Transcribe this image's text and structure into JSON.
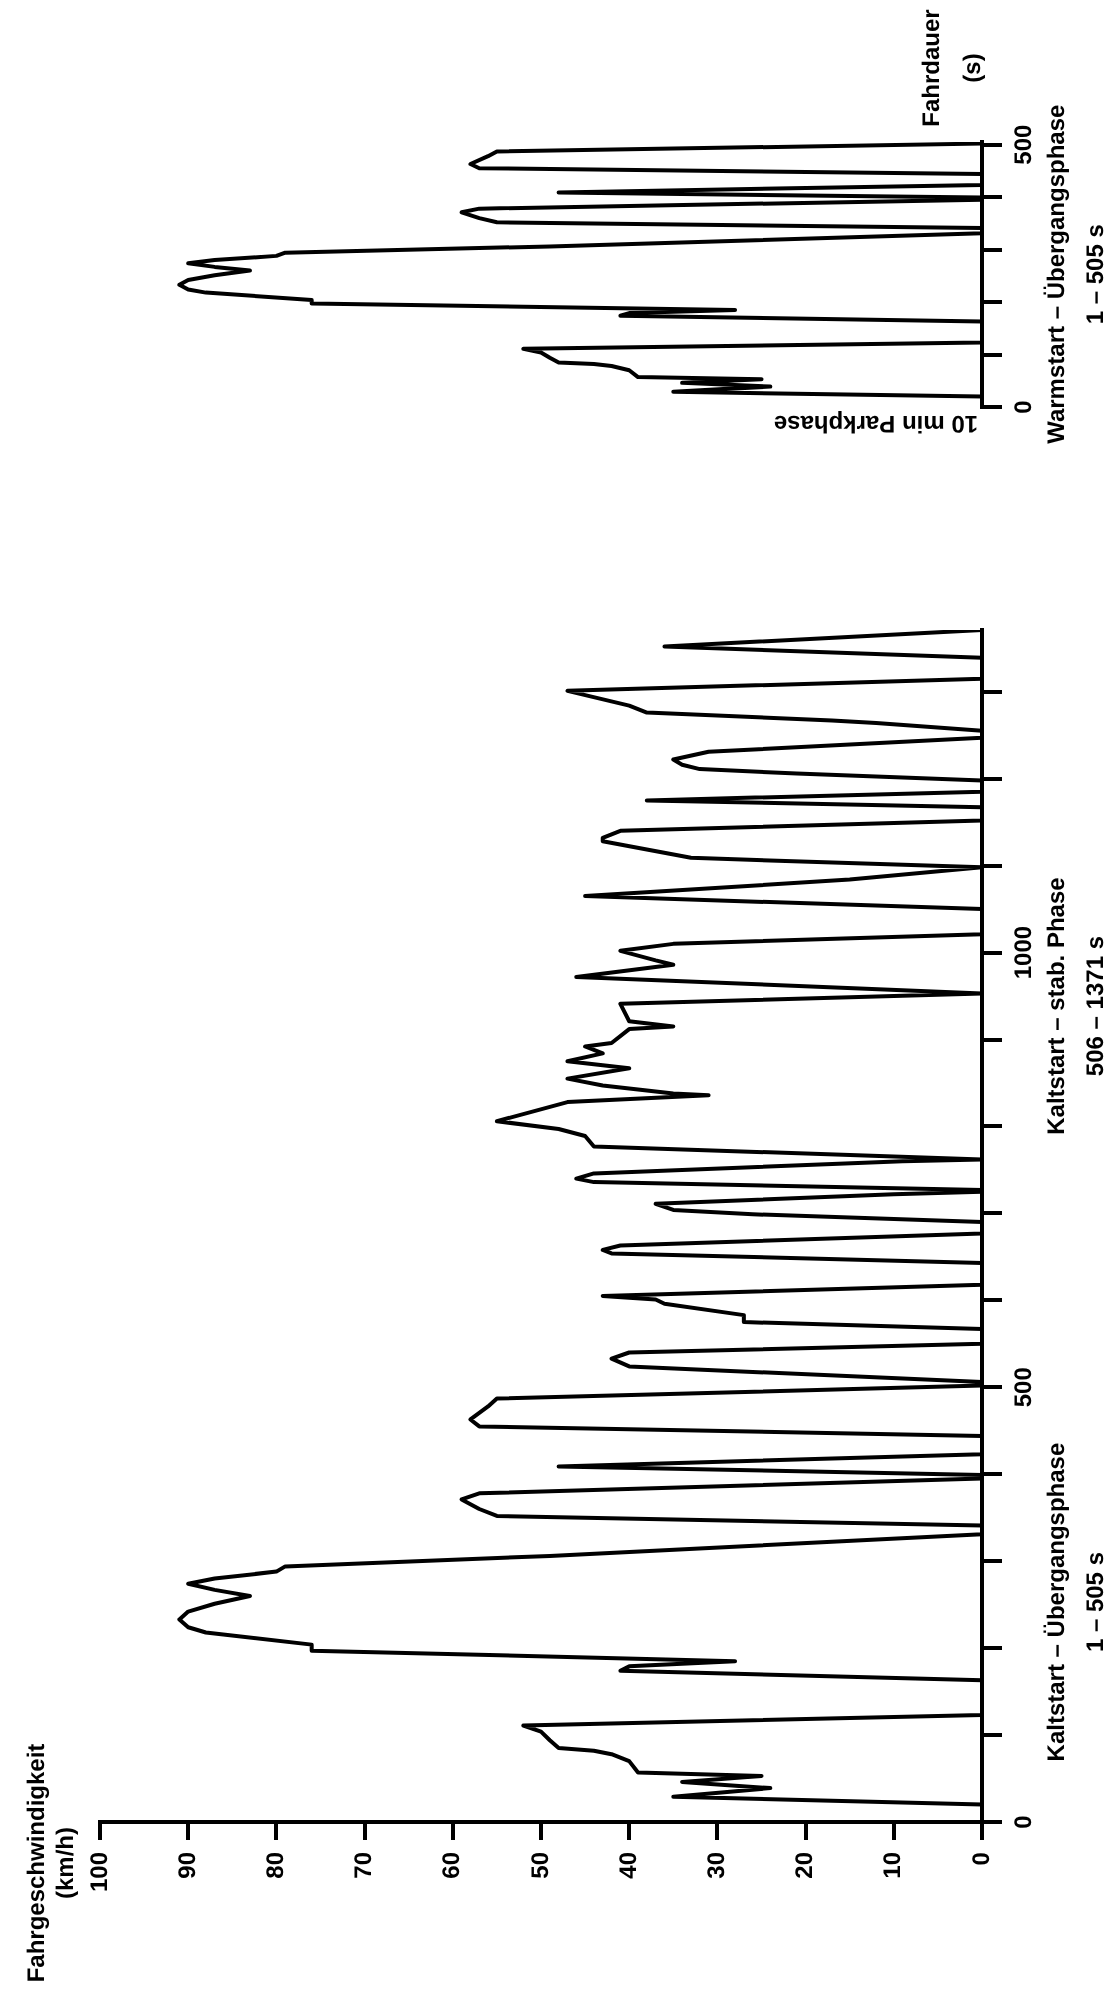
{
  "chart_data": [
    {
      "type": "line",
      "annotations": [
        "Fahrgeschwindigkeit\n(km/h)",
        "Kaltstart – Übergangsphase\n1 – 505 s",
        "Kaltstart – stab. Phase\n506 – 1371 s"
      ],
      "x": [
        0,
        0,
        35,
        24,
        34,
        25,
        39,
        40,
        42,
        44,
        48,
        49,
        50,
        52,
        0,
        0,
        41,
        40,
        28,
        76,
        76,
        88,
        90,
        91,
        90,
        87,
        83,
        87,
        90,
        87,
        80,
        79,
        49,
        0,
        0,
        55,
        57,
        59,
        57,
        0,
        0,
        48,
        0,
        0,
        57,
        58,
        56,
        55,
        0,
        0,
        40,
        42,
        40,
        0,
        0,
        27,
        27,
        36,
        37,
        43,
        0,
        0,
        42,
        43,
        41,
        0,
        0,
        26,
        35,
        37,
        10,
        0,
        0,
        44,
        46,
        44,
        9,
        0,
        44,
        45,
        48,
        55,
        47,
        31,
        35,
        43,
        47,
        40,
        47,
        43,
        45,
        42,
        40,
        35,
        40,
        41,
        0,
        46,
        35,
        37,
        41,
        35,
        0,
        0,
        45,
        15,
        0,
        33,
        43,
        43,
        41,
        0,
        0,
        38,
        0,
        0,
        21,
        32,
        34,
        35,
        31,
        0,
        0,
        12,
        17,
        38,
        40,
        47,
        0,
        0,
        36,
        0
      ],
      "values": [
        0,
        20,
        29,
        39,
        46,
        53,
        57,
        70,
        78,
        82,
        85,
        94,
        104,
        111,
        123,
        163,
        174,
        179,
        185,
        197,
        204,
        218,
        224,
        233,
        242,
        251,
        260,
        267,
        274,
        280,
        288,
        294,
        306,
        331,
        341,
        352,
        360,
        371,
        378,
        395,
        399,
        409,
        423,
        444,
        455,
        463,
        478,
        487,
        502,
        506,
        524,
        533,
        540,
        550,
        567,
        575,
        583,
        596,
        601,
        605,
        618,
        643,
        654,
        658,
        663,
        677,
        690,
        699,
        704,
        711,
        722,
        725,
        727,
        736,
        740,
        746,
        760,
        762,
        777,
        789,
        797,
        806,
        828,
        836,
        838,
        847,
        855,
        867,
        875,
        884,
        892,
        896,
        912,
        915,
        921,
        941,
        953,
        972,
        986,
        991,
        1002,
        1010,
        1021,
        1050,
        1065,
        1084,
        1098,
        1109,
        1128,
        1132,
        1140,
        1152,
        1167,
        1175,
        1185,
        1198,
        1206,
        1211,
        1216,
        1222,
        1231,
        1247,
        1255,
        1264,
        1267,
        1276,
        1284,
        1301,
        1315,
        1339,
        1352,
        1371
      ],
      "color": "#000000",
      "xlim": [
        100,
        0
      ],
      "xticks": [
        0,
        10,
        20,
        30,
        40,
        50,
        60,
        70,
        80,
        90,
        100
      ],
      "ylim": [
        0,
        1371
      ],
      "yticks": [
        0,
        {
          "value": 100,
          "label": null
        },
        {
          "value": 200,
          "label": null
        },
        {
          "value": 300,
          "label": null
        },
        {
          "value": 400,
          "label": null
        },
        500,
        {
          "value": 600,
          "label": null
        },
        {
          "value": 700,
          "label": null
        },
        {
          "value": 800,
          "label": null
        },
        {
          "value": 900,
          "label": null
        },
        1000,
        {
          "value": 1100,
          "label": null
        },
        {
          "value": 1200,
          "label": null
        },
        {
          "value": 1300,
          "label": null
        }
      ]
    },
    {
      "type": "line",
      "ylabel": "Fahrdauer\n(s)",
      "annotations": [
        "10 min Parkphase",
        "Warmstart – Übergangsphase\n1 – 505 s"
      ],
      "x": [
        0,
        0,
        35,
        24,
        34,
        25,
        39,
        40,
        42,
        44,
        48,
        49,
        50,
        52,
        0,
        0,
        41,
        40,
        28,
        76,
        76,
        88,
        90,
        91,
        90,
        87,
        83,
        87,
        90,
        87,
        80,
        79,
        49,
        0,
        0,
        55,
        57,
        59,
        57,
        0,
        0,
        48,
        0,
        0,
        57,
        58,
        56,
        55,
        0,
        0
      ],
      "values": [
        0,
        20,
        29,
        39,
        46,
        53,
        57,
        70,
        78,
        82,
        85,
        94,
        104,
        111,
        123,
        163,
        174,
        179,
        185,
        197,
        204,
        218,
        224,
        233,
        242,
        251,
        260,
        267,
        274,
        280,
        288,
        294,
        306,
        331,
        341,
        352,
        360,
        371,
        378,
        395,
        399,
        409,
        423,
        444,
        455,
        463,
        478,
        487,
        502,
        505
      ],
      "color": "#000000",
      "xlim": [
        100,
        0
      ],
      "ylim": [
        0,
        505
      ],
      "yticks": [
        0,
        {
          "value": 100,
          "label": null
        },
        {
          "value": 200,
          "label": null
        },
        {
          "value": 300,
          "label": null
        },
        {
          "value": 400,
          "label": null
        },
        500
      ],
      "tick_labels": "y"
    }
  ]
}
